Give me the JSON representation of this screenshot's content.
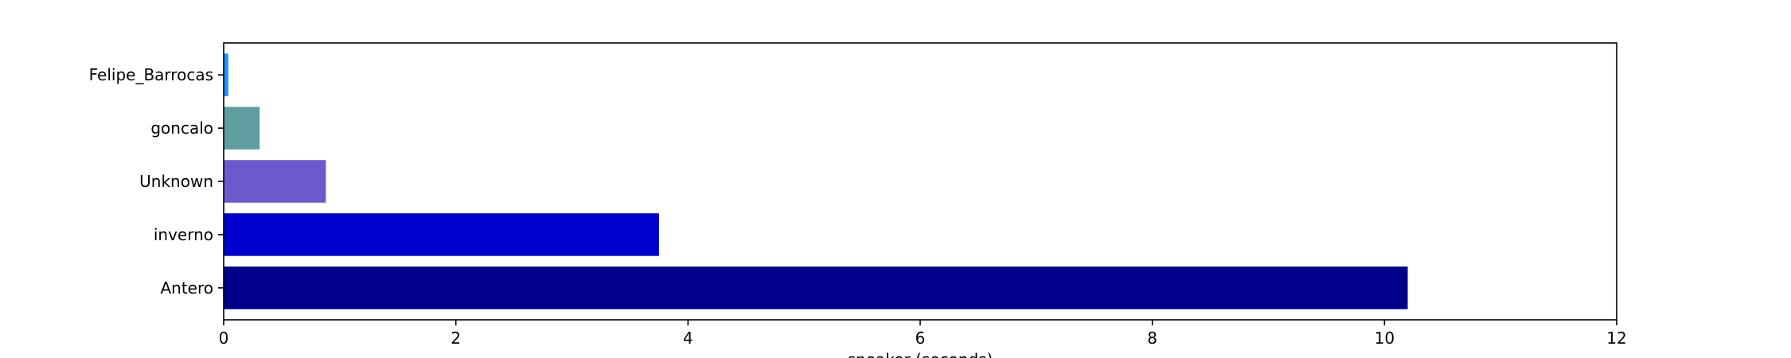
{
  "chart_data": {
    "type": "bar",
    "orientation": "horizontal",
    "title": "",
    "xlabel": "speaker (seconds)",
    "ylabel": "",
    "xlim": [
      0,
      12
    ],
    "xticks": [
      0,
      2,
      4,
      6,
      8,
      10,
      12
    ],
    "grid": false,
    "categories": [
      "Felipe_Barrocas",
      "goncalo",
      "Unknown",
      "inverno",
      "Antero"
    ],
    "values": [
      0.04,
      0.31,
      0.88,
      3.75,
      10.2
    ],
    "colors": [
      "#1e90ff",
      "#5f9ea0",
      "#6a5acd",
      "#0000cd",
      "#00008b"
    ]
  }
}
